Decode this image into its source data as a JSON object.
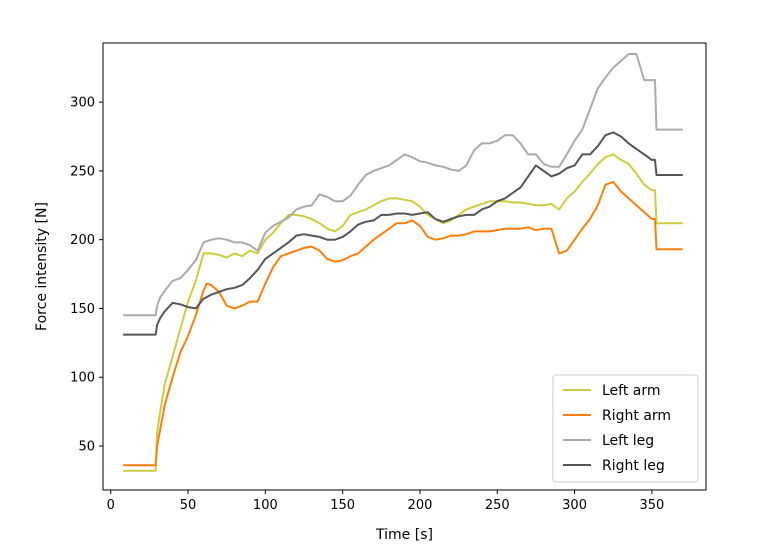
{
  "chart_data": {
    "type": "line",
    "xlabel": "Time [s]",
    "ylabel": "Force intensity [N]",
    "xlim": [
      -5,
      385
    ],
    "ylim": [
      18,
      343
    ],
    "xticks": [
      0,
      50,
      100,
      150,
      200,
      250,
      300,
      350
    ],
    "yticks": [
      50,
      100,
      150,
      200,
      250,
      300
    ],
    "grid": false,
    "legend_position": "lower right",
    "series": [
      {
        "name": "Left arm",
        "color": "#cccc44",
        "x": [
          8,
          29,
          30,
          32,
          35,
          40,
          45,
          50,
          55,
          60,
          65,
          70,
          75,
          80,
          85,
          90,
          95,
          100,
          105,
          110,
          115,
          120,
          125,
          130,
          135,
          140,
          145,
          150,
          155,
          160,
          165,
          170,
          175,
          180,
          185,
          190,
          195,
          200,
          205,
          210,
          215,
          220,
          225,
          230,
          235,
          240,
          245,
          250,
          255,
          260,
          265,
          270,
          275,
          280,
          285,
          290,
          295,
          300,
          305,
          310,
          315,
          320,
          325,
          330,
          335,
          340,
          345,
          350,
          352,
          353,
          360,
          370
        ],
        "y": [
          32,
          32,
          60,
          75,
          95,
          115,
          135,
          155,
          170,
          190,
          190,
          189,
          187,
          190,
          188,
          192,
          190,
          200,
          205,
          212,
          218,
          218,
          217,
          215,
          212,
          208,
          206,
          210,
          218,
          220,
          222,
          225,
          228,
          230,
          230,
          229,
          228,
          224,
          218,
          215,
          212,
          214,
          218,
          222,
          224,
          226,
          228,
          228,
          228,
          227,
          227,
          226,
          225,
          225,
          226,
          222,
          230,
          235,
          242,
          248,
          255,
          260,
          262,
          258,
          255,
          248,
          240,
          236,
          236,
          212,
          212,
          212
        ]
      },
      {
        "name": "Right arm",
        "color": "#ff7f0e",
        "x": [
          8,
          29,
          30,
          32,
          35,
          40,
          45,
          50,
          55,
          60,
          62,
          65,
          70,
          75,
          80,
          85,
          90,
          95,
          100,
          105,
          110,
          115,
          120,
          125,
          130,
          135,
          140,
          145,
          150,
          155,
          160,
          165,
          170,
          175,
          180,
          185,
          190,
          195,
          200,
          205,
          210,
          215,
          220,
          225,
          230,
          235,
          240,
          245,
          250,
          255,
          260,
          265,
          270,
          275,
          280,
          285,
          290,
          295,
          300,
          305,
          310,
          315,
          320,
          325,
          330,
          335,
          340,
          345,
          350,
          352,
          353,
          360,
          370
        ],
        "y": [
          36,
          36,
          50,
          62,
          80,
          100,
          118,
          130,
          145,
          163,
          168,
          167,
          162,
          152,
          150,
          152,
          155,
          155,
          168,
          180,
          188,
          190,
          192,
          194,
          195,
          192,
          186,
          184,
          185,
          188,
          190,
          195,
          200,
          204,
          208,
          212,
          212,
          214,
          210,
          202,
          200,
          201,
          203,
          203,
          204,
          206,
          206,
          206,
          207,
          208,
          208,
          208,
          209,
          207,
          208,
          208,
          190,
          192,
          200,
          208,
          215,
          225,
          240,
          242,
          235,
          230,
          225,
          220,
          215,
          215,
          193,
          193,
          193
        ]
      },
      {
        "name": "Left leg",
        "color": "#aaaaaa",
        "x": [
          8,
          29,
          30,
          32,
          35,
          40,
          45,
          50,
          55,
          60,
          65,
          70,
          75,
          80,
          85,
          90,
          95,
          100,
          105,
          110,
          115,
          120,
          125,
          130,
          135,
          140,
          145,
          150,
          155,
          160,
          165,
          170,
          175,
          180,
          185,
          190,
          195,
          200,
          205,
          210,
          215,
          220,
          225,
          230,
          235,
          240,
          245,
          250,
          255,
          260,
          265,
          270,
          275,
          280,
          285,
          290,
          295,
          300,
          305,
          310,
          315,
          320,
          325,
          330,
          335,
          340,
          345,
          350,
          352,
          353,
          360,
          370
        ],
        "y": [
          145,
          145,
          152,
          158,
          163,
          170,
          172,
          178,
          185,
          198,
          200,
          201,
          200,
          198,
          198,
          196,
          192,
          205,
          210,
          213,
          216,
          222,
          224,
          225,
          233,
          231,
          228,
          228,
          232,
          240,
          247,
          250,
          252,
          254,
          258,
          262,
          260,
          257,
          256,
          254,
          253,
          251,
          250,
          254,
          265,
          270,
          270,
          272,
          276,
          276,
          270,
          262,
          262,
          255,
          253,
          253,
          262,
          272,
          280,
          295,
          310,
          318,
          325,
          330,
          335,
          335,
          316,
          316,
          316,
          280,
          280,
          280
        ]
      },
      {
        "name": "Right leg",
        "color": "#555555",
        "x": [
          8,
          29,
          30,
          32,
          35,
          40,
          45,
          50,
          55,
          60,
          65,
          70,
          75,
          80,
          85,
          90,
          95,
          100,
          105,
          110,
          115,
          120,
          125,
          130,
          135,
          140,
          145,
          150,
          155,
          160,
          165,
          170,
          175,
          180,
          185,
          190,
          195,
          200,
          205,
          210,
          215,
          220,
          225,
          230,
          235,
          240,
          245,
          250,
          255,
          260,
          265,
          270,
          275,
          280,
          285,
          290,
          295,
          300,
          305,
          310,
          315,
          320,
          325,
          330,
          335,
          340,
          345,
          350,
          352,
          353,
          360,
          370
        ],
        "y": [
          131,
          131,
          138,
          143,
          148,
          154,
          153,
          151,
          150,
          157,
          160,
          162,
          164,
          165,
          167,
          172,
          178,
          186,
          190,
          194,
          198,
          203,
          204,
          203,
          202,
          200,
          200,
          202,
          206,
          211,
          213,
          214,
          218,
          218,
          219,
          219,
          218,
          219,
          220,
          215,
          213,
          215,
          217,
          218,
          218,
          222,
          224,
          228,
          230,
          234,
          238,
          246,
          254,
          250,
          246,
          248,
          252,
          254,
          262,
          262,
          268,
          276,
          278,
          275,
          270,
          266,
          262,
          258,
          258,
          247,
          247,
          247
        ]
      }
    ]
  }
}
